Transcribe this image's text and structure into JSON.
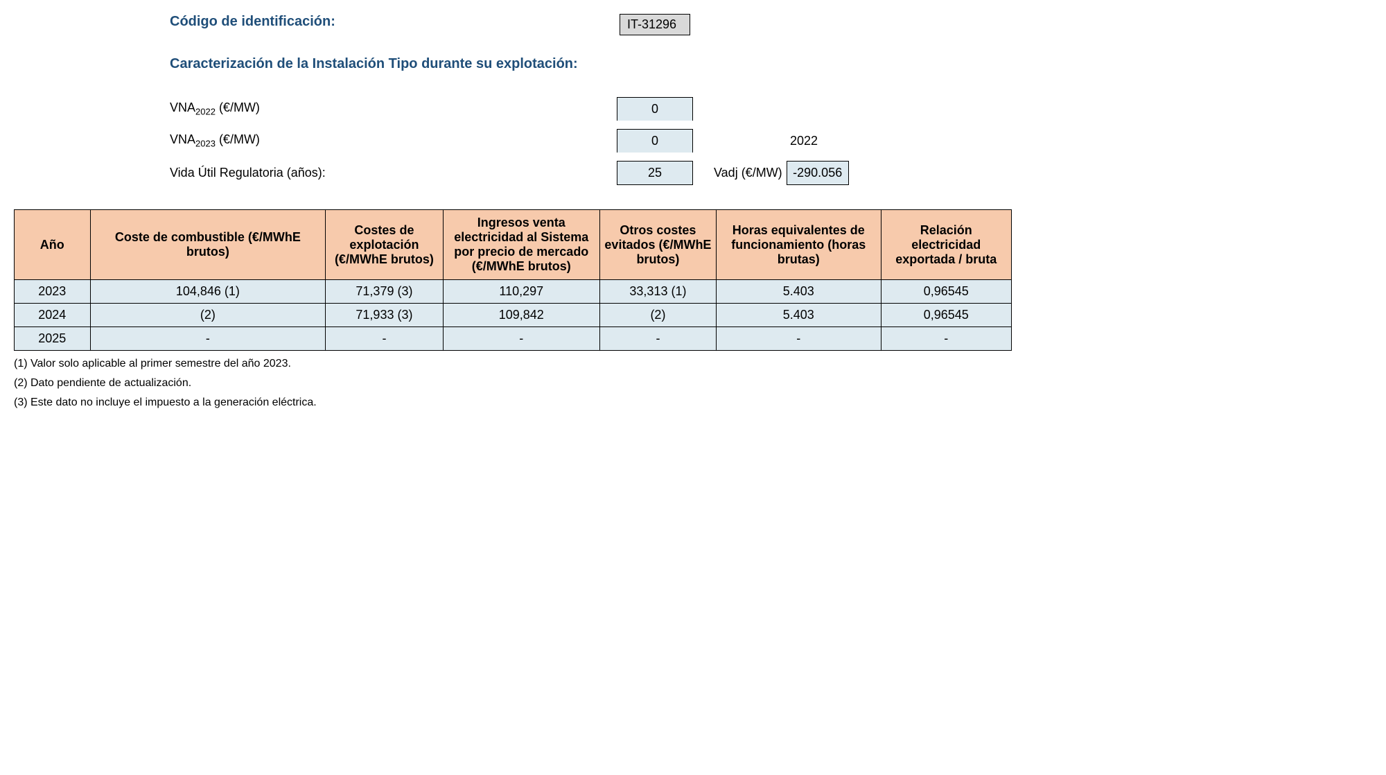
{
  "header": {
    "id_label": "Código de identificación:",
    "id_value": "IT-31296",
    "section_title": "Caracterización de la Instalación Tipo durante su explotación:"
  },
  "params": {
    "vna2022_label_pre": "VNA",
    "vna2022_sub": "2022",
    "vna2022_label_post": " (€/MW)",
    "vna2022_value": "0",
    "vna2023_label_pre": "VNA",
    "vna2023_sub": "2023",
    "vna2023_label_post": " (€/MW)",
    "vna2023_value": "0",
    "year_right": "2022",
    "vida_label": "Vida Útil Regulatoria (años):",
    "vida_value": "25",
    "vadj_label": "Vadj (€/MW)",
    "vadj_value": "-290.056"
  },
  "table": {
    "columns": [
      "Año",
      "Coste de combustible (€/MWhE brutos)",
      "Costes de explotación (€/MWhE brutos)",
      "Ingresos venta electricidad al Sistema por precio de mercado (€/MWhE brutos)",
      "Otros costes evitados (€/MWhE brutos)",
      "Horas equivalentes de funcionamiento (horas brutas)",
      "Relación electricidad exportada / bruta"
    ],
    "rows": [
      [
        "2023",
        "104,846 (1)",
        "71,379 (3)",
        "110,297",
        "33,313 (1)",
        "5.403",
        "0,96545"
      ],
      [
        "2024",
        "(2)",
        "71,933 (3)",
        "109,842",
        "(2)",
        "5.403",
        "0,96545"
      ],
      [
        "2025",
        "-",
        "-",
        "-",
        "-",
        "-",
        "-"
      ]
    ],
    "col_widths": [
      "100px",
      "340px",
      "160px",
      "220px",
      "160px",
      "230px",
      "180px"
    ],
    "header_bg": "#f7caac",
    "cell_bg": "#deeaf0"
  },
  "footnotes": [
    "(1) Valor solo aplicable al primer semestre del año 2023.",
    "(2) Dato pendiente de actualización.",
    "(3) Este dato no incluye el impuesto a la generación eléctrica."
  ]
}
